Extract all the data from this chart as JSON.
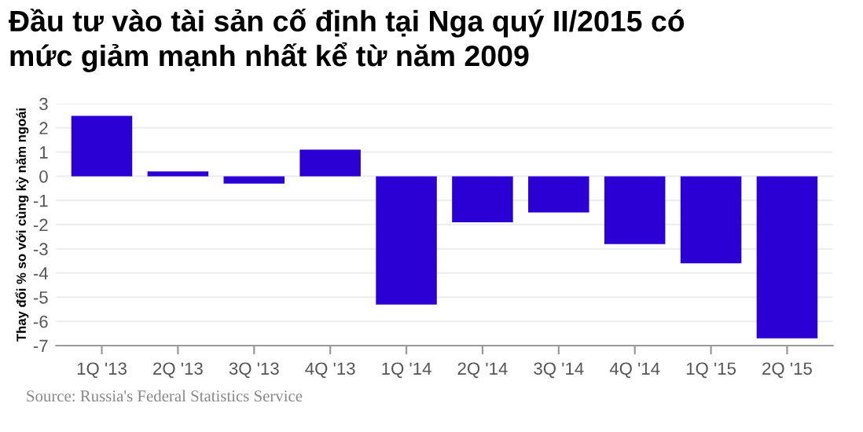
{
  "chart_data": {
    "type": "bar",
    "title": "Đầu tư vào tài sản cố định tại Nga quý II/2015 có\nmức giảm mạnh nhất kể từ năm 2009",
    "ylabel": "Thay đổi % so với cùng kỳ năm ngoái",
    "categories": [
      "1Q '13",
      "2Q '13",
      "3Q '13",
      "4Q '13",
      "1Q '14",
      "2Q '14",
      "3Q '14",
      "4Q '14",
      "1Q '15",
      "2Q '15"
    ],
    "values": [
      2.5,
      0.2,
      -0.3,
      1.1,
      -5.3,
      -1.9,
      -1.5,
      -2.8,
      -3.6,
      -6.7
    ],
    "color": "#2a00d5",
    "ylim": [
      -7,
      3
    ],
    "yticks": [
      -7,
      -6,
      -5,
      -4,
      -3,
      -2,
      -1,
      0,
      1,
      2,
      3
    ],
    "grid": "y",
    "annotations": [
      "Source: Russia's Federal Statistics Service"
    ]
  }
}
